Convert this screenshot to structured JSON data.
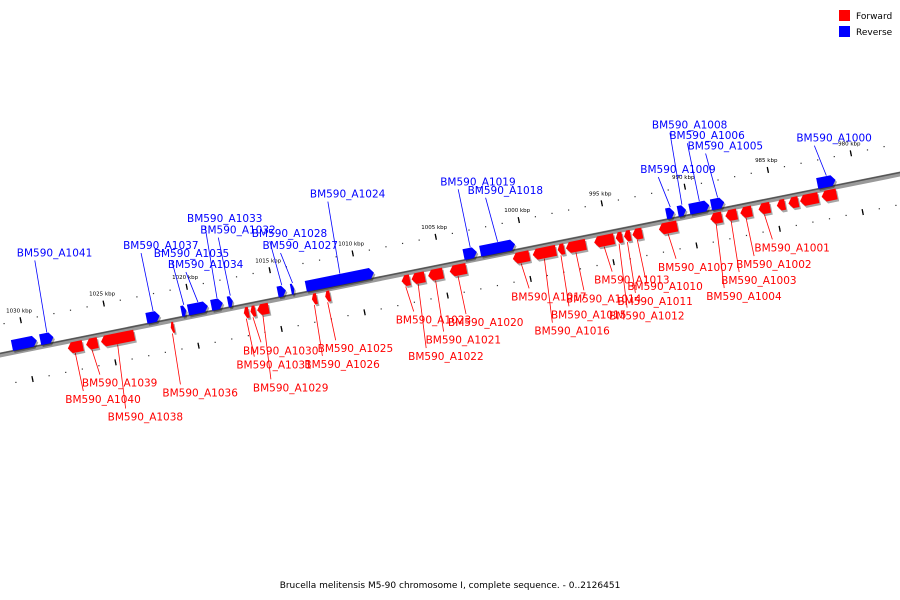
{
  "legend": {
    "forward_label": "Forward",
    "reverse_label": "Reverse",
    "forward_color": "#ff0000",
    "reverse_color": "#0000ff"
  },
  "caption": "Brucella melitensis M5-90 chromosome I, complete sequence. - 0..2126451",
  "axis": {
    "start_kbp": 1031,
    "end_kbp": 978,
    "ticks": [
      {
        "kbp": 980,
        "label": "980 kbp"
      },
      {
        "kbp": 985,
        "label": "985 kbp"
      },
      {
        "kbp": 990,
        "label": "990 kbp"
      },
      {
        "kbp": 995,
        "label": "995 kbp"
      },
      {
        "kbp": 1000,
        "label": "1000 kbp"
      },
      {
        "kbp": 1005,
        "label": "1005 kbp"
      },
      {
        "kbp": 1010,
        "label": "1010 kbp"
      },
      {
        "kbp": 1015,
        "label": "1015 kbp"
      },
      {
        "kbp": 1020,
        "label": "1020 kbp"
      },
      {
        "kbp": 1025,
        "label": "1025 kbp"
      },
      {
        "kbp": 1030,
        "label": "1030 kbp"
      }
    ]
  },
  "genes": [
    {
      "name": "BM590_A1000",
      "strand": "reverse",
      "start_kbp": 982.3,
      "end_kbp": 981.2
    },
    {
      "name": "BM590_A1001",
      "strand": "forward",
      "start_kbp": 986.0,
      "end_kbp": 985.3
    },
    {
      "name": "BM590_A1002",
      "strand": "forward",
      "start_kbp": 987.1,
      "end_kbp": 986.4
    },
    {
      "name": "BM590_A1003",
      "strand": "forward",
      "start_kbp": 988.0,
      "end_kbp": 987.3
    },
    {
      "name": "BM590_A1004",
      "strand": "forward",
      "start_kbp": 988.9,
      "end_kbp": 988.2
    },
    {
      "name": "BM590_A1005",
      "strand": "reverse",
      "start_kbp": 988.7,
      "end_kbp": 987.9
    },
    {
      "name": "BM590_A1006",
      "strand": "reverse",
      "start_kbp": 990.0,
      "end_kbp": 988.8
    },
    {
      "name": "BM590_A1007",
      "strand": "forward",
      "start_kbp": 992.0,
      "end_kbp": 990.9
    },
    {
      "name": "BM590_A1008",
      "strand": "reverse",
      "start_kbp": 990.7,
      "end_kbp": 990.2
    },
    {
      "name": "BM590_A1009",
      "strand": "reverse",
      "start_kbp": 991.4,
      "end_kbp": 990.9
    },
    {
      "name": "BM590_A1010",
      "strand": "forward",
      "start_kbp": 993.6,
      "end_kbp": 993.0
    },
    {
      "name": "BM590_A1011",
      "strand": "forward",
      "start_kbp": 994.1,
      "end_kbp": 993.7
    },
    {
      "name": "BM590_A1012",
      "strand": "forward",
      "start_kbp": 994.6,
      "end_kbp": 994.2
    },
    {
      "name": "BM590_A1013",
      "strand": "forward",
      "start_kbp": 995.9,
      "end_kbp": 994.7
    },
    {
      "name": "BM590_A1014",
      "strand": "forward",
      "start_kbp": 997.6,
      "end_kbp": 996.4
    },
    {
      "name": "BM590_A1015",
      "strand": "forward",
      "start_kbp": 998.1,
      "end_kbp": 997.7
    },
    {
      "name": "BM590_A1016",
      "strand": "forward",
      "start_kbp": 999.6,
      "end_kbp": 998.2
    },
    {
      "name": "BM590_A1017",
      "strand": "forward",
      "start_kbp": 1000.8,
      "end_kbp": 999.8
    },
    {
      "name": "BM590_A1018",
      "strand": "reverse",
      "start_kbp": 1002.6,
      "end_kbp": 1000.5
    },
    {
      "name": "BM590_A1019",
      "strand": "reverse",
      "start_kbp": 1003.6,
      "end_kbp": 1002.8
    },
    {
      "name": "BM590_A1020",
      "strand": "forward",
      "start_kbp": 1004.6,
      "end_kbp": 1003.6
    },
    {
      "name": "BM590_A1021",
      "strand": "forward",
      "start_kbp": 1005.9,
      "end_kbp": 1005.0
    },
    {
      "name": "BM590_A1022",
      "strand": "forward",
      "start_kbp": 1006.9,
      "end_kbp": 1006.1
    },
    {
      "name": "BM590_A1023",
      "strand": "forward",
      "start_kbp": 1007.5,
      "end_kbp": 1007.0
    },
    {
      "name": "BM590_A1024",
      "strand": "reverse",
      "start_kbp": 1013.1,
      "end_kbp": 1009.0
    },
    {
      "name": "BM590_A1025",
      "strand": "forward",
      "start_kbp": 1012.1,
      "end_kbp": 1011.8
    },
    {
      "name": "BM590_A1026",
      "strand": "forward",
      "start_kbp": 1012.9,
      "end_kbp": 1012.6
    },
    {
      "name": "BM590_A1027",
      "strand": "reverse",
      "start_kbp": 1014.0,
      "end_kbp": 1013.8
    },
    {
      "name": "BM590_A1028",
      "strand": "reverse",
      "start_kbp": 1014.8,
      "end_kbp": 1014.3
    },
    {
      "name": "BM590_A1029",
      "strand": "forward",
      "start_kbp": 1016.2,
      "end_kbp": 1015.5
    },
    {
      "name": "BM590_A1030",
      "strand": "forward",
      "start_kbp": 1016.6,
      "end_kbp": 1016.3
    },
    {
      "name": "BM590_A1031",
      "strand": "forward",
      "start_kbp": 1017.0,
      "end_kbp": 1016.7
    },
    {
      "name": "BM590_A1032",
      "strand": "reverse",
      "start_kbp": 1017.8,
      "end_kbp": 1017.5
    },
    {
      "name": "BM590_A1033",
      "strand": "reverse",
      "start_kbp": 1018.8,
      "end_kbp": 1018.1
    },
    {
      "name": "BM590_A1034",
      "strand": "reverse",
      "start_kbp": 1020.2,
      "end_kbp": 1019.0
    },
    {
      "name": "BM590_A1035",
      "strand": "reverse",
      "start_kbp": 1020.6,
      "end_kbp": 1020.3
    },
    {
      "name": "BM590_A1036",
      "strand": "forward",
      "start_kbp": 1021.4,
      "end_kbp": 1021.2
    },
    {
      "name": "BM590_A1037",
      "strand": "reverse",
      "start_kbp": 1022.7,
      "end_kbp": 1021.9
    },
    {
      "name": "BM590_A1038",
      "strand": "forward",
      "start_kbp": 1025.6,
      "end_kbp": 1023.6
    },
    {
      "name": "BM590_A1039",
      "strand": "forward",
      "start_kbp": 1026.5,
      "end_kbp": 1025.8
    },
    {
      "name": "BM590_A1040",
      "strand": "forward",
      "start_kbp": 1027.6,
      "end_kbp": 1026.7
    },
    {
      "name": "BM590_A1041",
      "strand": "reverse",
      "start_kbp": 1029.1,
      "end_kbp": 1028.3
    }
  ],
  "extra_genes_offscreen": [
    {
      "strand": "reverse",
      "start_kbp": 1030.8,
      "end_kbp": 1029.3
    },
    {
      "strand": "forward",
      "start_kbp": 984.9,
      "end_kbp": 984.4
    },
    {
      "strand": "forward",
      "start_kbp": 984.2,
      "end_kbp": 983.6
    },
    {
      "strand": "forward",
      "start_kbp": 983.5,
      "end_kbp": 982.4
    },
    {
      "strand": "forward",
      "start_kbp": 982.2,
      "end_kbp": 981.3
    }
  ]
}
